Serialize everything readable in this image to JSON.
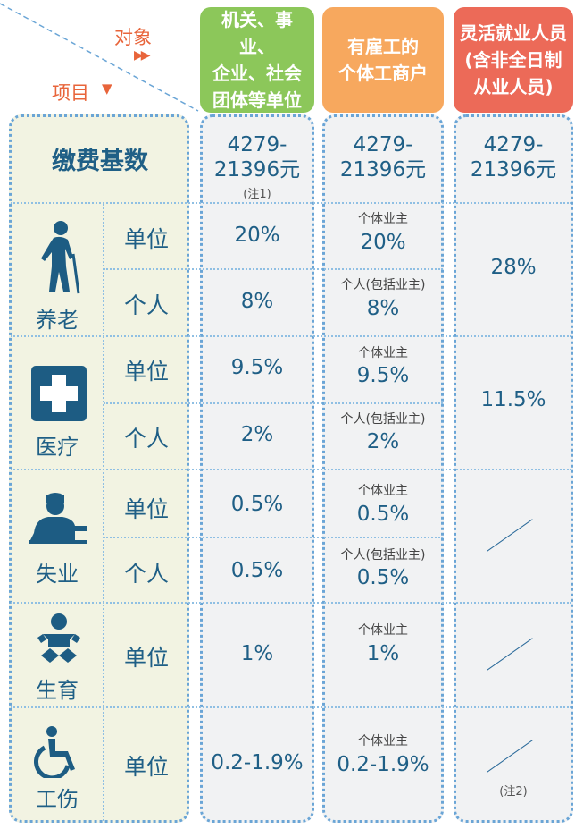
{
  "corner": {
    "object_label": "对象",
    "item_label": "项目"
  },
  "columns": [
    {
      "lines": [
        "机关、事业、",
        "企业、社会",
        "团体等单位"
      ],
      "color": "#8cc75a"
    },
    {
      "lines": [
        "有雇工的",
        "个体工商户"
      ],
      "color": "#f7a85e"
    },
    {
      "lines": [
        "灵活就业人员",
        "(含非全日制",
        "从业人员)"
      ],
      "color": "#ec6a58"
    }
  ],
  "base": {
    "label": "缴费基数",
    "c1": [
      "4279-",
      "21396元"
    ],
    "c1_note": "(注1)",
    "c2": [
      "4279-",
      "21396元"
    ],
    "c3": [
      "4279-",
      "21396元"
    ]
  },
  "categories": {
    "pension": "养老",
    "medical": "医疗",
    "unemployment": "失业",
    "maternity": "生育",
    "injury": "工伤"
  },
  "labels": {
    "unit": "单位",
    "personal": "个人"
  },
  "notes": {
    "owner": "个体业主",
    "personal_incl_owner": "个人(包括业主)",
    "note2": "(注2)"
  },
  "values": {
    "pension_unit": {
      "c1": "20%",
      "c2": "20%"
    },
    "pension_personal": {
      "c1": "8%",
      "c2": "8%"
    },
    "pension_flex": "28%",
    "medical_unit": {
      "c1": "9.5%",
      "c2": "9.5%"
    },
    "medical_personal": {
      "c1": "2%",
      "c2": "2%"
    },
    "medical_flex": "11.5%",
    "unemp_unit": {
      "c1": "0.5%",
      "c2": "0.5%"
    },
    "unemp_personal": {
      "c1": "0.5%",
      "c2": "0.5%"
    },
    "maternity_unit": {
      "c1": "1%",
      "c2": "1%"
    },
    "injury_unit": {
      "c1": "0.2-1.9%",
      "c2": "0.2-1.9%"
    }
  },
  "icons": {
    "pension": "elderly-person-cane-icon",
    "medical": "medical-cross-icon",
    "unemployment": "person-at-desk-icon",
    "maternity": "baby-icon",
    "injury": "wheelchair-icon"
  },
  "colors": {
    "text": "#1f5f86",
    "accent": "#e8643a",
    "icon": "#1d5c83"
  }
}
